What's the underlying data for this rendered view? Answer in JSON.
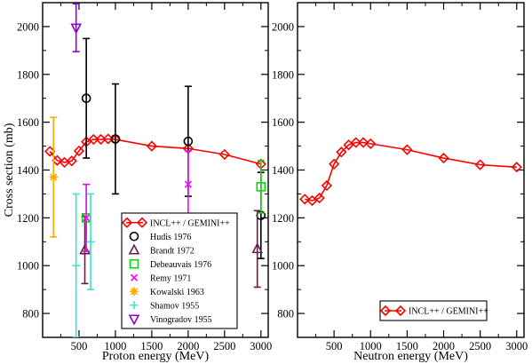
{
  "chart_data": [
    {
      "type": "line",
      "xlabel": "Proton energy (MeV)",
      "ylabel": "Cross section (mb)",
      "xlim": [
        0,
        3100
      ],
      "ylim": [
        700,
        2100
      ],
      "xticks": [
        500,
        1000,
        1500,
        2000,
        2500,
        3000
      ],
      "yticks": [
        800,
        1000,
        1200,
        1400,
        1600,
        1800,
        2000
      ],
      "grid": false,
      "legend": "bottom-center",
      "series": [
        {
          "name": "INCL++ / GEMINI++",
          "color": "#ff0000",
          "marker": "diamond-open",
          "x": [
            100,
            200,
            300,
            400,
            500,
            600,
            700,
            800,
            900,
            1000,
            1500,
            2000,
            2500,
            3000
          ],
          "y": [
            1478,
            1440,
            1432,
            1438,
            1480,
            1518,
            1528,
            1528,
            1530,
            1528,
            1500,
            1490,
            1465,
            1425
          ]
        },
        {
          "name": "Hudis 1976",
          "color": "#000000",
          "marker": "circle-open",
          "x": [
            600,
            1000,
            2000,
            3000
          ],
          "y": [
            1700,
            1530,
            1520,
            1210
          ],
          "yerr": [
            250,
            230,
            230,
            180
          ]
        },
        {
          "name": "Brandt 1972",
          "color": "#6a1b4d",
          "marker": "triangle-up-open",
          "x": [
            580,
            2950
          ],
          "y": [
            1065,
            1070
          ],
          "yerr": [
            140,
            160
          ]
        },
        {
          "name": "Debeauvais 1976",
          "color": "#00dd00",
          "marker": "square-open",
          "x": [
            600,
            3000
          ],
          "y": [
            1200,
            1330
          ],
          "yerr": [
            140,
            110
          ]
        },
        {
          "name": "Remy 1971",
          "color": "#ff00ff",
          "marker": "x",
          "x": [
            600,
            2000
          ],
          "y": [
            1200,
            1340
          ],
          "yerr": [
            140,
            140
          ]
        },
        {
          "name": "Kowalski 1963",
          "color": "#ffa500",
          "marker": "star",
          "x": [
            150
          ],
          "y": [
            1370
          ],
          "yerr": [
            250
          ]
        },
        {
          "name": "Shamov 1955",
          "color": "#40e0d0",
          "marker": "plus",
          "x": [
            460,
            660
          ],
          "y": [
            1000,
            1100
          ],
          "yerr": [
            300,
            200
          ]
        },
        {
          "name": "Vinogradov 1955",
          "color": "#9400d3",
          "marker": "triangle-down-open",
          "x": [
            460
          ],
          "y": [
            1995
          ],
          "yerr": [
            100
          ]
        }
      ]
    },
    {
      "type": "line",
      "xlabel": "Neutron energy (MeV)",
      "ylabel": "",
      "xlim": [
        0,
        3100
      ],
      "ylim": [
        700,
        2100
      ],
      "xticks": [
        500,
        1000,
        1500,
        2000,
        2500,
        3000
      ],
      "yticks": [
        800,
        1000,
        1200,
        1400,
        1600,
        1800,
        2000
      ],
      "grid": false,
      "legend": "bottom-right",
      "series": [
        {
          "name": "INCL++ / GEMINI++",
          "color": "#ff0000",
          "marker": "diamond-open",
          "x": [
            100,
            200,
            300,
            400,
            500,
            600,
            700,
            800,
            900,
            1000,
            1500,
            2000,
            2500,
            3000
          ],
          "y": [
            1278,
            1272,
            1283,
            1335,
            1425,
            1475,
            1505,
            1515,
            1515,
            1510,
            1485,
            1450,
            1422,
            1412
          ]
        }
      ]
    }
  ]
}
